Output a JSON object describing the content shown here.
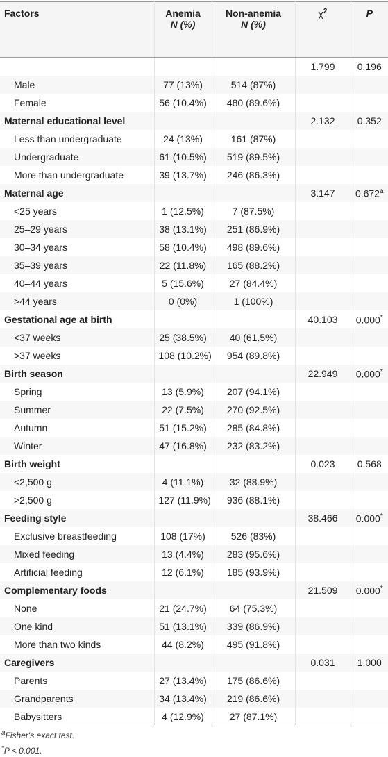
{
  "header": {
    "factors": "Factors",
    "anemia": "Anemia",
    "anemia_sub": "N (%)",
    "non_anemia": "Non-anemia",
    "non_anemia_sub": "N (%)",
    "chi": "χ",
    "chi_sup": "2",
    "p": "P"
  },
  "groups": [
    {
      "label": null,
      "chi": "1.799",
      "p": "0.196",
      "rows": [
        {
          "label": "Male",
          "anemia": "77 (13%)",
          "non_anemia": "514 (87%)"
        },
        {
          "label": "Female",
          "anemia": "56 (10.4%)",
          "non_anemia": "480 (89.6%)"
        }
      ]
    },
    {
      "label": "Maternal educational level",
      "chi": "2.132",
      "p": "0.352",
      "rows": [
        {
          "label": "Less than undergraduate",
          "anemia": "24 (13%)",
          "non_anemia": "161 (87%)"
        },
        {
          "label": "Undergraduate",
          "anemia": "61 (10.5%)",
          "non_anemia": "519 (89.5%)"
        },
        {
          "label": "More than undergraduate",
          "anemia": "39 (13.7%)",
          "non_anemia": "246 (86.3%)"
        }
      ]
    },
    {
      "label": "Maternal age",
      "chi": "3.147",
      "p": "0.672",
      "p_note": "a",
      "rows": [
        {
          "label": "<25 years",
          "anemia": "1 (12.5%)",
          "non_anemia": "7 (87.5%)"
        },
        {
          "label": "25–29 years",
          "anemia": "38 (13.1%)",
          "non_anemia": "251 (86.9%)"
        },
        {
          "label": "30–34 years",
          "anemia": "58 (10.4%)",
          "non_anemia": "498 (89.6%)"
        },
        {
          "label": "35–39 years",
          "anemia": "22 (11.8%)",
          "non_anemia": "165 (88.2%)"
        },
        {
          "label": "40–44 years",
          "anemia": "5 (15.6%)",
          "non_anemia": "27 (84.4%)"
        },
        {
          "label": ">44 years",
          "anemia": "0 (0%)",
          "non_anemia": "1 (100%)"
        }
      ]
    },
    {
      "label": "Gestational age at birth",
      "chi": "40.103",
      "p": "0.000",
      "p_note": "*",
      "rows": [
        {
          "label": "<37 weeks",
          "anemia": "25 (38.5%)",
          "non_anemia": "40 (61.5%)"
        },
        {
          "label": ">37 weeks",
          "anemia": "108 (10.2%)",
          "non_anemia": "954 (89.8%)"
        }
      ]
    },
    {
      "label": "Birth season",
      "chi": "22.949",
      "p": "0.000",
      "p_note": "*",
      "rows": [
        {
          "label": "Spring",
          "anemia": "13 (5.9%)",
          "non_anemia": "207 (94.1%)"
        },
        {
          "label": "Summer",
          "anemia": "22 (7.5%)",
          "non_anemia": "270 (92.5%)"
        },
        {
          "label": "Autumn",
          "anemia": "51 (15.2%)",
          "non_anemia": "285 (84.8%)"
        },
        {
          "label": "Winter",
          "anemia": "47 (16.8%)",
          "non_anemia": "232 (83.2%)"
        }
      ]
    },
    {
      "label": "Birth weight",
      "chi": "0.023",
      "p": "0.568",
      "rows": [
        {
          "label": "<2,500 g",
          "anemia": "4 (11.1%)",
          "non_anemia": "32 (88.9%)"
        },
        {
          "label": ">2,500 g",
          "anemia": "127 (11.9%)",
          "non_anemia": "936 (88.1%)"
        }
      ]
    },
    {
      "label": "Feeding style",
      "chi": "38.466",
      "p": "0.000",
      "p_note": "*",
      "rows": [
        {
          "label": "Exclusive breastfeeding",
          "anemia": "108 (17%)",
          "non_anemia": "526 (83%)"
        },
        {
          "label": "Mixed feeding",
          "anemia": "13 (4.4%)",
          "non_anemia": "283 (95.6%)"
        },
        {
          "label": "Artificial feeding",
          "anemia": "12 (6.1%)",
          "non_anemia": "185 (93.9%)"
        }
      ]
    },
    {
      "label": "Complementary foods",
      "chi": "21.509",
      "p": "0.000",
      "p_note": "*",
      "rows": [
        {
          "label": "None",
          "anemia": "21 (24.7%)",
          "non_anemia": "64 (75.3%)"
        },
        {
          "label": "One kind",
          "anemia": "51 (13.1%)",
          "non_anemia": "339 (86.9%)"
        },
        {
          "label": "More than two kinds",
          "anemia": "44 (8.2%)",
          "non_anemia": "495 (91.8%)"
        }
      ]
    },
    {
      "label": "Caregivers",
      "chi": "0.031",
      "p": "1.000",
      "rows": [
        {
          "label": "Parents",
          "anemia": "27 (13.4%)",
          "non_anemia": "175 (86.6%)"
        },
        {
          "label": "Grandparents",
          "anemia": "34 (13.4%)",
          "non_anemia": "219 (86.6%)"
        },
        {
          "label": "Babysitters",
          "anemia": "4 (12.9%)",
          "non_anemia": "27 (87.1%)"
        }
      ]
    }
  ],
  "footnotes": [
    {
      "mark": "a",
      "text": "Fisher's exact test."
    },
    {
      "mark": "*",
      "text": "P < 0.001."
    }
  ]
}
